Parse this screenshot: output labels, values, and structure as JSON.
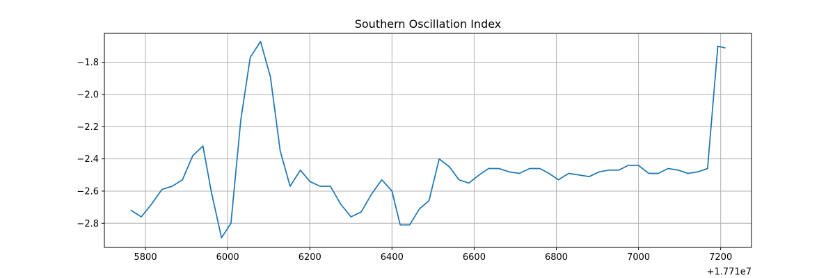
{
  "chart_data": {
    "type": "line",
    "title": "Southern Oscillation Index",
    "xlabel": "",
    "ylabel": "",
    "x_offset_label": "+1.771e7",
    "xlim": [
      5700,
      7275
    ],
    "ylim": [
      -2.95,
      -1.62
    ],
    "grid": true,
    "x_ticks": [
      5800,
      6000,
      6200,
      6400,
      6600,
      6800,
      7000,
      7200
    ],
    "x_tick_labels": [
      "5800",
      "6000",
      "6200",
      "6400",
      "6600",
      "6800",
      "7000",
      "7200"
    ],
    "y_ticks": [
      -2.8,
      -2.6,
      -2.4,
      -2.2,
      -2.0,
      -1.8
    ],
    "y_tick_labels": [
      "−2.8",
      "−2.6",
      "−2.4",
      "−2.2",
      "−2.0",
      "−1.8"
    ],
    "series": [
      {
        "color": "#1f77b4",
        "x": [
          5765,
          5790,
          5815,
          5840,
          5865,
          5890,
          5915,
          5940,
          5960,
          5985,
          6008,
          6032,
          6055,
          6080,
          6104,
          6128,
          6152,
          6177,
          6200,
          6225,
          6250,
          6275,
          6300,
          6325,
          6350,
          6375,
          6400,
          6420,
          6443,
          6467,
          6490,
          6515,
          6540,
          6563,
          6587,
          6612,
          6635,
          6660,
          6685,
          6710,
          6735,
          6760,
          6782,
          6805,
          6830,
          6855,
          6880,
          6905,
          6928,
          6952,
          6975,
          7000,
          7025,
          7048,
          7072,
          7097,
          7120,
          7145,
          7168,
          7193,
          7210
        ],
        "y": [
          -2.72,
          -2.76,
          -2.68,
          -2.59,
          -2.57,
          -2.53,
          -2.38,
          -2.32,
          -2.6,
          -2.89,
          -2.8,
          -2.16,
          -1.77,
          -1.67,
          -1.89,
          -2.35,
          -2.57,
          -2.47,
          -2.54,
          -2.57,
          -2.57,
          -2.68,
          -2.76,
          -2.73,
          -2.62,
          -2.53,
          -2.6,
          -2.81,
          -2.81,
          -2.71,
          -2.66,
          -2.4,
          -2.45,
          -2.53,
          -2.55,
          -2.5,
          -2.46,
          -2.46,
          -2.48,
          -2.49,
          -2.46,
          -2.46,
          -2.49,
          -2.53,
          -2.49,
          -2.5,
          -2.51,
          -2.48,
          -2.47,
          -2.47,
          -2.44,
          -2.44,
          -2.49,
          -2.49,
          -2.46,
          -2.47,
          -2.49,
          -2.48,
          -2.46,
          -1.7,
          -1.71
        ]
      }
    ]
  }
}
